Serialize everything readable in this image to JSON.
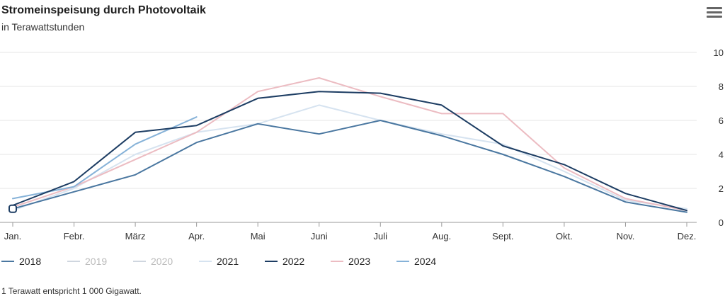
{
  "header": {
    "title": "Stromeinspeisung durch Photovoltaik",
    "subtitle": "in Terawattstunden"
  },
  "menu": {
    "icon": "hamburger-menu-icon"
  },
  "footnote": "1 Terawatt entspricht 1 000 Gigawatt.",
  "chart_data": {
    "type": "line",
    "title": "Stromeinspeisung durch Photovoltaik",
    "subtitle": "in Terawattstunden",
    "categories": [
      "Jan.",
      "Febr.",
      "März",
      "Apr.",
      "Mai",
      "Juni",
      "Juli",
      "Aug.",
      "Sept.",
      "Okt.",
      "Nov.",
      "Dez."
    ],
    "ylim": [
      0,
      10
    ],
    "yticks": [
      0,
      2,
      4,
      6,
      8,
      10
    ],
    "y_axis_position": "right",
    "grid": true,
    "legend": "bottom",
    "series": [
      {
        "name": "2018",
        "color": "#4a77a0",
        "visible": true,
        "values": [
          0.8,
          1.8,
          2.8,
          4.7,
          5.8,
          5.2,
          6.0,
          5.1,
          4.0,
          2.7,
          1.2,
          0.6
        ]
      },
      {
        "name": "2019",
        "color": "#b8c7dc",
        "visible": false,
        "values": [
          null,
          null,
          null,
          null,
          null,
          null,
          null,
          null,
          null,
          null,
          null,
          null
        ]
      },
      {
        "name": "2020",
        "color": "#c9d3e0",
        "visible": false,
        "values": [
          null,
          null,
          null,
          null,
          null,
          null,
          null,
          null,
          null,
          null,
          null,
          null
        ]
      },
      {
        "name": "2021",
        "color": "#d6e3f0",
        "visible": true,
        "values": [
          0.7,
          2.0,
          4.0,
          5.3,
          5.8,
          6.9,
          6.0,
          5.2,
          4.6,
          3.0,
          1.3,
          0.8
        ]
      },
      {
        "name": "2022",
        "color": "#1d3d63",
        "visible": true,
        "values": [
          1.0,
          2.4,
          5.3,
          5.7,
          7.3,
          7.7,
          7.6,
          6.9,
          4.5,
          3.4,
          1.7,
          0.7
        ]
      },
      {
        "name": "2023",
        "color": "#ecbcc2",
        "visible": true,
        "values": [
          0.9,
          2.1,
          3.7,
          5.3,
          7.7,
          8.5,
          7.4,
          6.4,
          6.4,
          3.2,
          1.4,
          0.7
        ]
      },
      {
        "name": "2024",
        "color": "#86b2d8",
        "visible": true,
        "values": [
          1.4,
          2.1,
          4.6,
          6.2,
          null,
          null,
          null,
          null,
          null,
          null,
          null,
          null
        ]
      }
    ]
  }
}
